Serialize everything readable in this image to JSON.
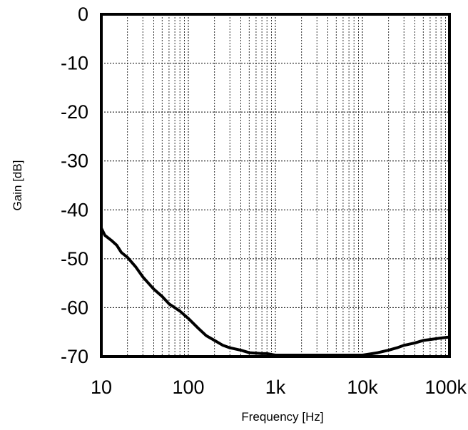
{
  "chart_data": {
    "type": "line",
    "title": "",
    "xlabel": "Frequency [Hz]",
    "ylabel": "Gain [dB]",
    "x_scale": "log",
    "xlim": [
      10,
      100000
    ],
    "ylim": [
      -70,
      0
    ],
    "x_ticks": [
      {
        "value": 10,
        "label": "10"
      },
      {
        "value": 100,
        "label": "100"
      },
      {
        "value": 1000,
        "label": "1k"
      },
      {
        "value": 10000,
        "label": "10k"
      },
      {
        "value": 100000,
        "label": "100k"
      }
    ],
    "y_ticks": [
      {
        "value": 0,
        "label": "0"
      },
      {
        "value": -10,
        "label": "-10"
      },
      {
        "value": -20,
        "label": "-20"
      },
      {
        "value": -30,
        "label": "-30"
      },
      {
        "value": -40,
        "label": "-40"
      },
      {
        "value": -50,
        "label": "-50"
      },
      {
        "value": -60,
        "label": "-60"
      },
      {
        "value": -70,
        "label": "-70"
      }
    ],
    "grid": true,
    "line_color": "#000000",
    "series": [
      {
        "x": [
          10,
          11,
          13,
          15,
          17,
          20,
          25,
          30,
          40,
          50,
          60,
          80,
          100,
          130,
          160,
          200,
          250,
          300,
          400,
          500,
          600,
          700,
          800,
          1000,
          2000,
          5000,
          10000,
          13000,
          15000,
          20000,
          25000,
          30000,
          40000,
          50000,
          60000,
          80000,
          100000
        ],
        "y": [
          -44,
          -45.5,
          -46.5,
          -47.5,
          -49,
          -50,
          -52,
          -54,
          -56.5,
          -58,
          -59.5,
          -61,
          -62.5,
          -64.5,
          -66,
          -67,
          -68,
          -68.5,
          -69,
          -69.5,
          -69.6,
          -69.7,
          -69.7,
          -70,
          -70,
          -70,
          -70,
          -69.7,
          -69.5,
          -69,
          -68.5,
          -68,
          -67.5,
          -67,
          -66.8,
          -66.5,
          -66.3
        ]
      }
    ]
  }
}
